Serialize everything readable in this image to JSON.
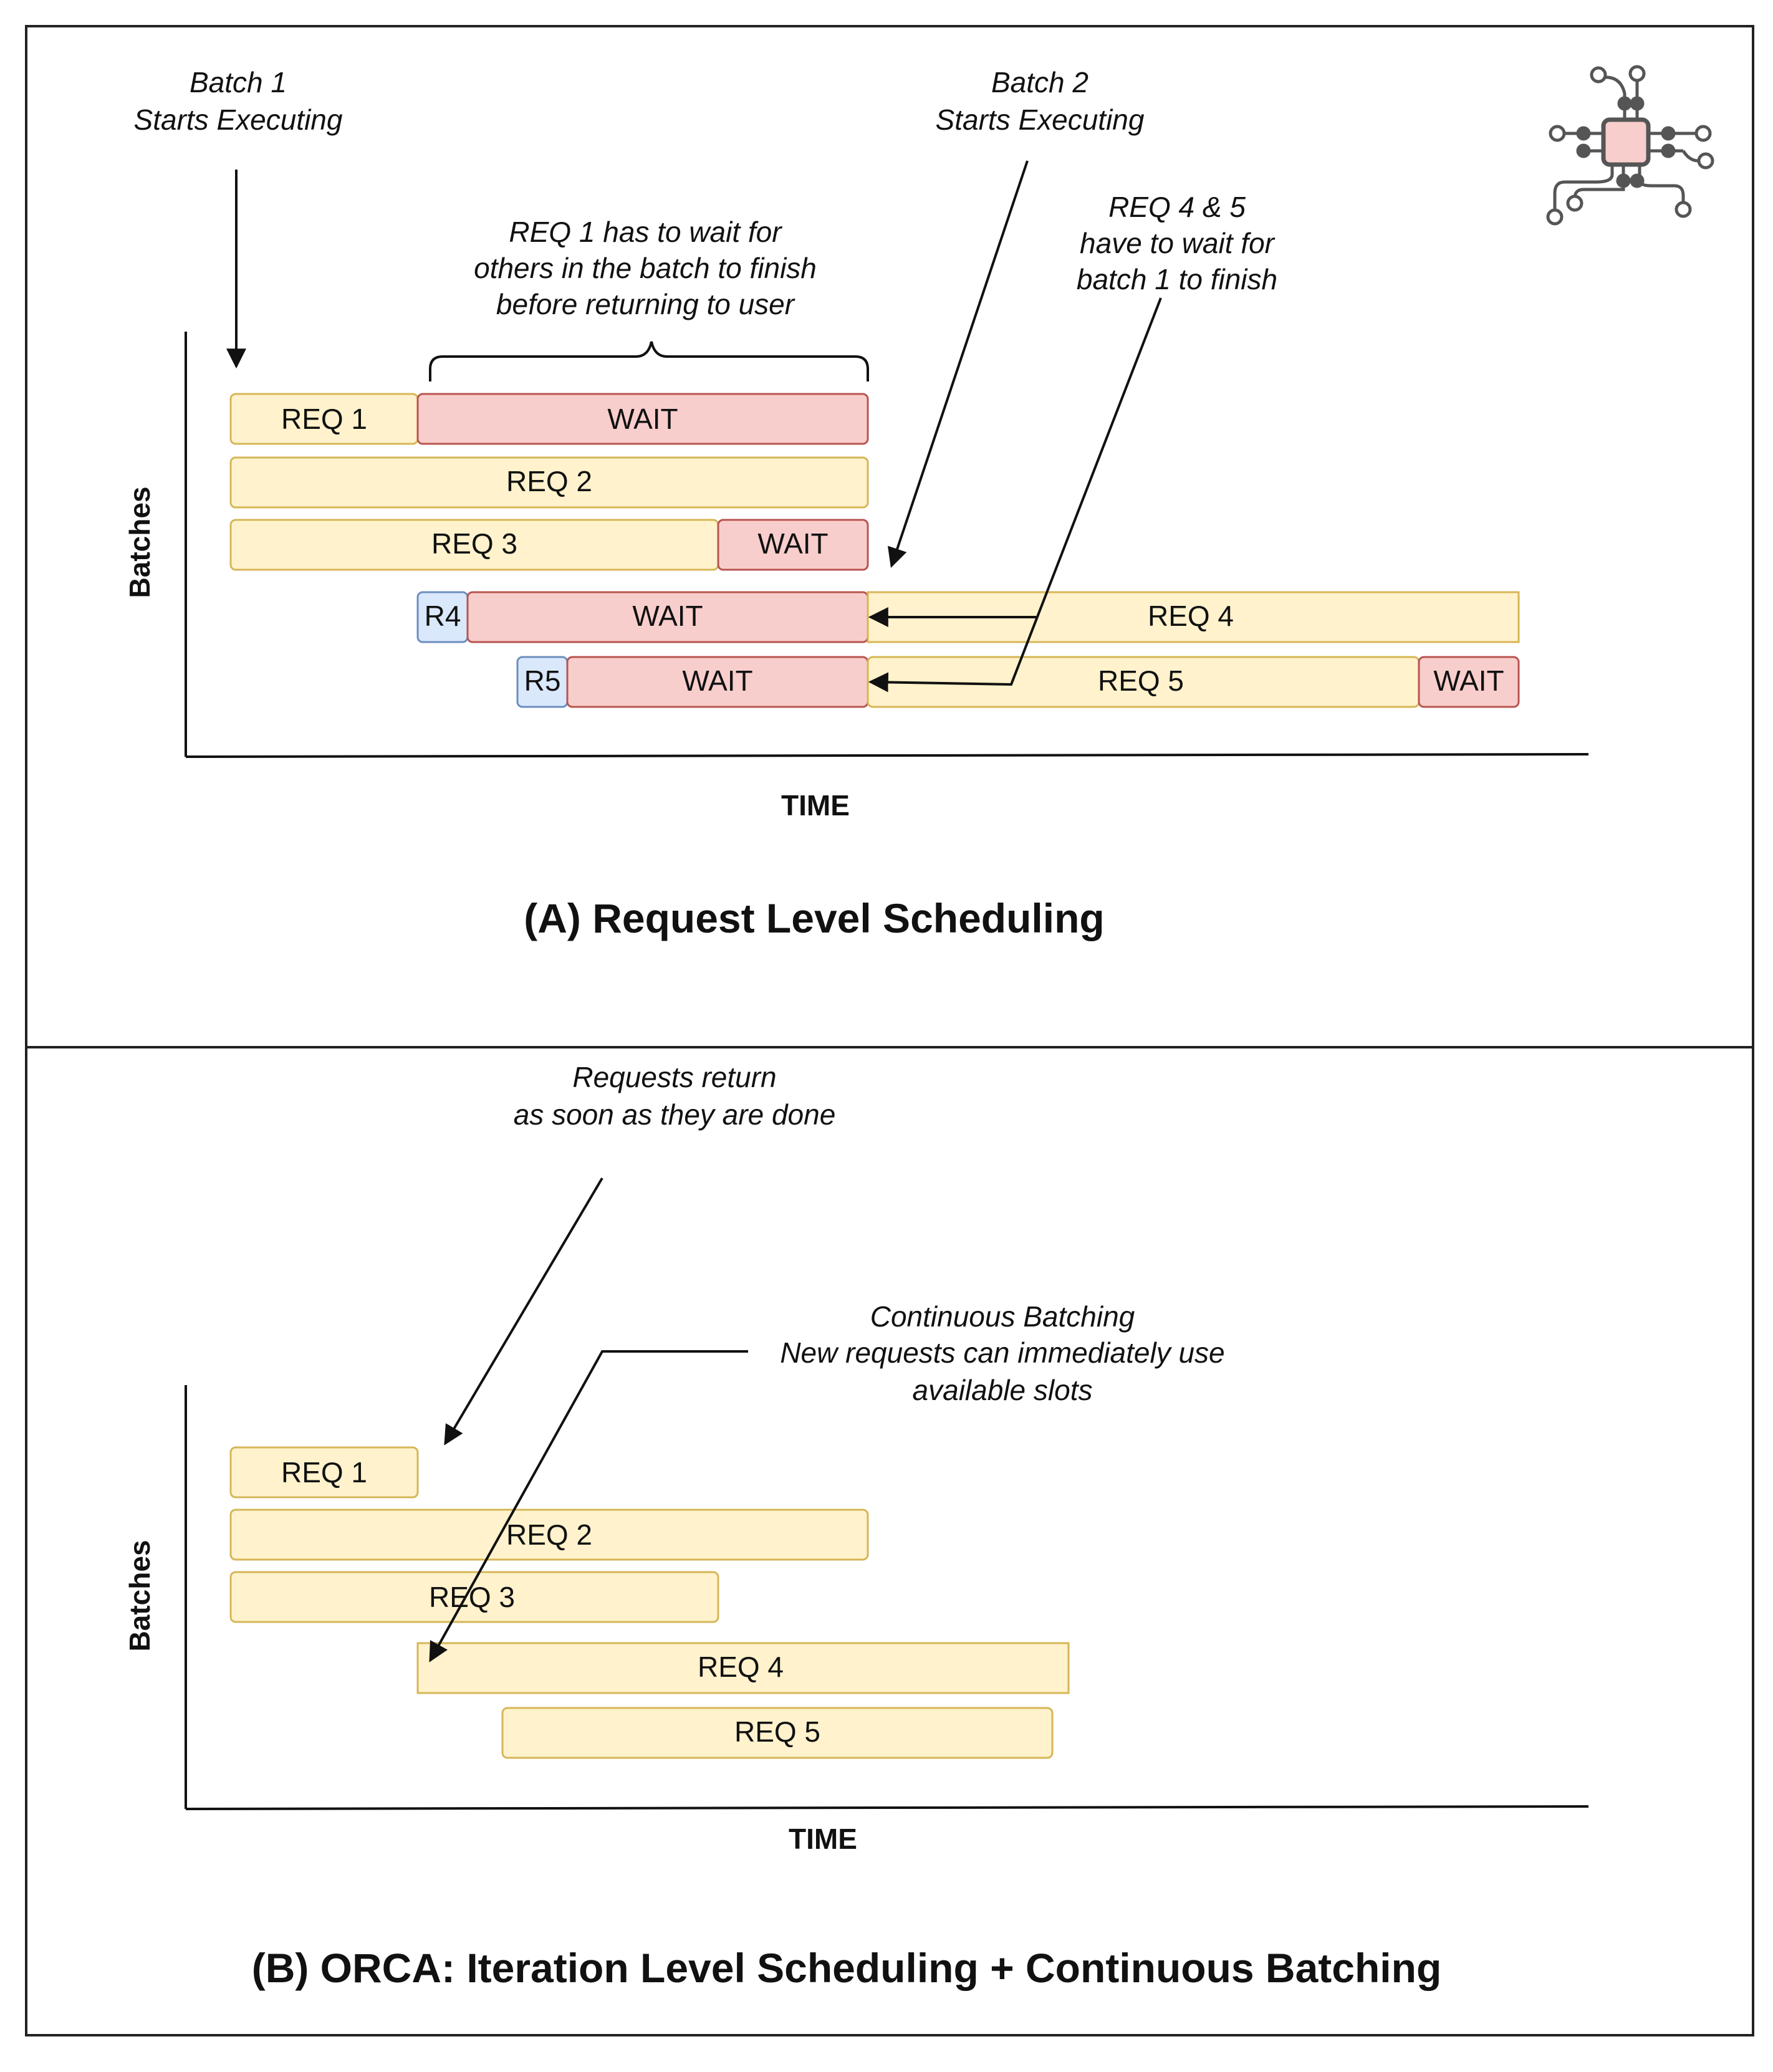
{
  "panel_a": {
    "title": "(A) Request Level Scheduling",
    "y_axis_label": "Batches",
    "x_axis_label": "TIME",
    "annotations": {
      "batch1": [
        "Batch 1",
        "Starts Executing"
      ],
      "batch2": [
        "Batch 2",
        "Starts Executing"
      ],
      "req1_wait": [
        "REQ 1 has to wait for",
        "others in the batch to finish",
        "before returning to user"
      ],
      "req45_wait": [
        "REQ 4 & 5",
        "have to wait for",
        "batch 1 to finish"
      ]
    },
    "bars": {
      "req1": "REQ 1",
      "req1_wait": "WAIT",
      "req2": "REQ 2",
      "req3": "REQ 3",
      "req3_wait": "WAIT",
      "r4": "R4",
      "r4_wait": "WAIT",
      "req4": "REQ 4",
      "r5": "R5",
      "r5_wait": "WAIT",
      "req5": "REQ 5",
      "req5_wait": "WAIT"
    }
  },
  "panel_b": {
    "title": "(B) ORCA: Iteration Level Scheduling + Continuous Batching",
    "y_axis_label": "Batches",
    "x_axis_label": "TIME",
    "annotations": {
      "return": [
        "Requests return",
        "as soon as they are done"
      ],
      "continuous": [
        "Continuous Batching",
        "New requests can immediately use",
        "available slots"
      ]
    },
    "bars": {
      "req1": "REQ 1",
      "req2": "REQ 2",
      "req3": "REQ 3",
      "req4": "REQ 4",
      "req5": "REQ 5"
    }
  },
  "colors": {
    "request_fill": "#fff2cc",
    "request_stroke": "#d6b656",
    "wait_fill": "#f8cecc",
    "wait_stroke": "#b85450",
    "arrival_fill": "#dae8fc",
    "arrival_stroke": "#6c8ebf"
  },
  "icons": [
    "circuit-chip-icon"
  ]
}
